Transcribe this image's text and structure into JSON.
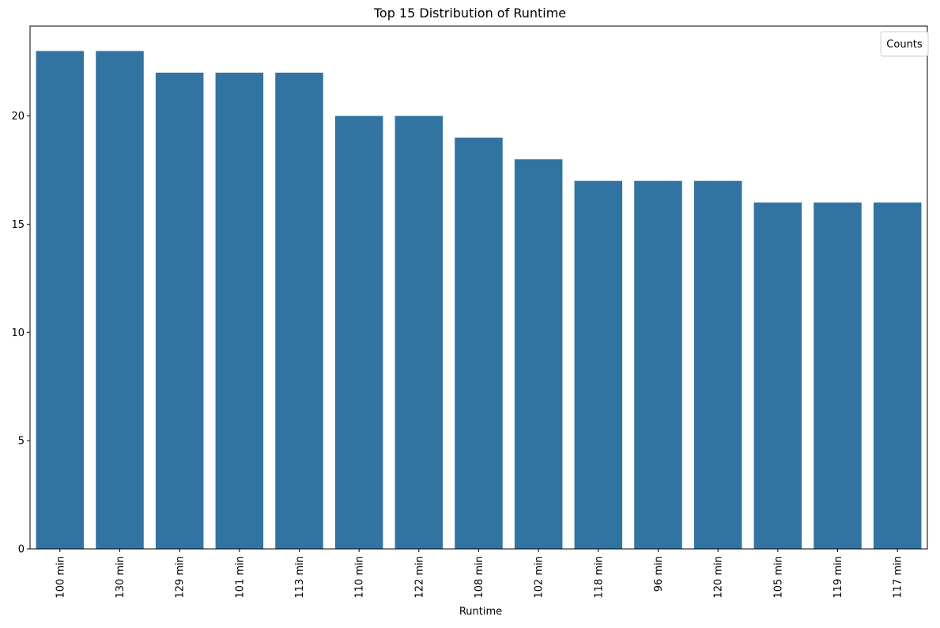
{
  "chart_data": {
    "type": "bar",
    "title": "Top 15 Distribution of Runtime",
    "xlabel": "Runtime",
    "ylabel": "",
    "categories": [
      "100 min",
      "130 min",
      "129 min",
      "101 min",
      "113 min",
      "110 min",
      "122 min",
      "108 min",
      "102 min",
      "118 min",
      "96 min",
      "120 min",
      "105 min",
      "119 min",
      "117 min"
    ],
    "values": [
      23,
      23,
      22,
      22,
      22,
      20,
      20,
      19,
      18,
      17,
      17,
      17,
      16,
      16,
      16
    ],
    "ylim": [
      0,
      24.15
    ],
    "yticks": [
      0,
      5,
      10,
      15,
      20
    ],
    "grid": false,
    "legend": {
      "title": "Counts",
      "placement": "top-right"
    },
    "colors": {
      "bar": "#3274a1",
      "axis": "#000000",
      "background": "#ffffff",
      "legend_border": "#cccccc"
    }
  }
}
